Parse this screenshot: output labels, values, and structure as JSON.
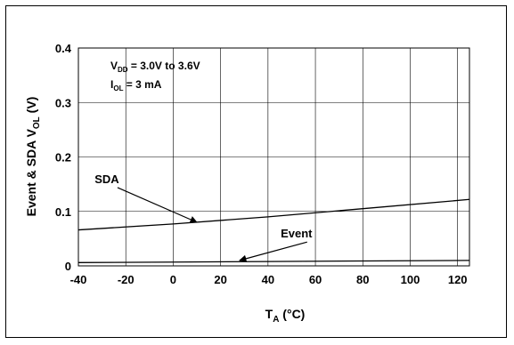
{
  "chart_data": {
    "type": "line",
    "xlabel_main": "T",
    "xlabel_sub": "A",
    "xlabel_unit": " (°C)",
    "ylabel_prefix": "Event & SDA V",
    "ylabel_sub": "OL",
    "ylabel_unit": " (V)",
    "xlim": [
      -40,
      125
    ],
    "ylim": [
      0,
      0.4
    ],
    "x_ticks": [
      -40,
      -20,
      0,
      20,
      40,
      60,
      80,
      100,
      120
    ],
    "x_tick_labels": [
      "-40",
      "-20",
      "0",
      "20",
      "40",
      "60",
      "80",
      "100",
      "120"
    ],
    "y_ticks": [
      0,
      0.1,
      0.2,
      0.3,
      0.4
    ],
    "y_tick_labels": [
      "0",
      "0.1",
      "0.2",
      "0.3",
      "0.4"
    ],
    "grid": true,
    "conditions": {
      "vdd_main": "V",
      "vdd_sub": "DD",
      "vdd_rest": " = 3.0V to 3.6V",
      "iol_main": "I",
      "iol_sub": "OL",
      "iol_rest": " = 3 mA"
    },
    "series": [
      {
        "name": "SDA",
        "x": [
          -40,
          0,
          40,
          80,
          125
        ],
        "y": [
          0.066,
          0.077,
          0.09,
          0.105,
          0.122
        ]
      },
      {
        "name": "Event",
        "x": [
          -40,
          0,
          40,
          80,
          125
        ],
        "y": [
          0.006,
          0.007,
          0.008,
          0.009,
          0.01
        ]
      }
    ],
    "annotations": [
      {
        "label": "SDA",
        "label_x": -28,
        "label_y": 0.152,
        "arrow_x": 10,
        "arrow_y": 0.08
      },
      {
        "label": "Event",
        "label_x": 52,
        "label_y": 0.052,
        "arrow_x": 28,
        "arrow_y": 0.01
      }
    ]
  }
}
